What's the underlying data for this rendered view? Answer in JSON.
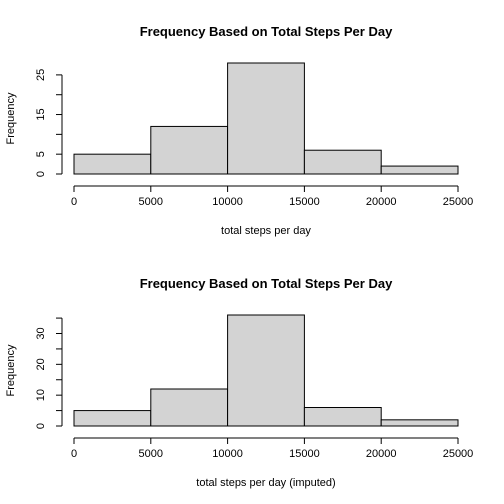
{
  "chart_data": [
    {
      "type": "bar",
      "title": "Frequency Based on Total Steps Per Day",
      "xlabel": "total steps per day",
      "ylabel": "Frequency",
      "bins": [
        [
          0,
          5000
        ],
        [
          5000,
          10000
        ],
        [
          10000,
          15000
        ],
        [
          15000,
          20000
        ],
        [
          20000,
          25000
        ]
      ],
      "values": [
        5,
        12,
        28,
        6,
        2
      ],
      "xticks": [
        "0",
        "5000",
        "10000",
        "15000",
        "20000",
        "25000"
      ],
      "yticks": [
        "0",
        "5",
        "15",
        "25"
      ],
      "xlim": [
        0,
        25000
      ],
      "ylim": [
        0,
        28
      ],
      "bar_color": "#d3d3d3"
    },
    {
      "type": "bar",
      "title": "Frequency Based on Total Steps Per Day",
      "xlabel": "total steps per day (imputed)",
      "ylabel": "Frequency",
      "bins": [
        [
          0,
          5000
        ],
        [
          5000,
          10000
        ],
        [
          10000,
          15000
        ],
        [
          15000,
          20000
        ],
        [
          20000,
          25000
        ]
      ],
      "values": [
        5,
        12,
        36,
        6,
        2
      ],
      "xticks": [
        "0",
        "5000",
        "10000",
        "15000",
        "20000",
        "25000"
      ],
      "yticks": [
        "0",
        "10",
        "20",
        "30"
      ],
      "xlim": [
        0,
        25000
      ],
      "ylim": [
        0,
        36
      ],
      "bar_color": "#d3d3d3"
    }
  ]
}
